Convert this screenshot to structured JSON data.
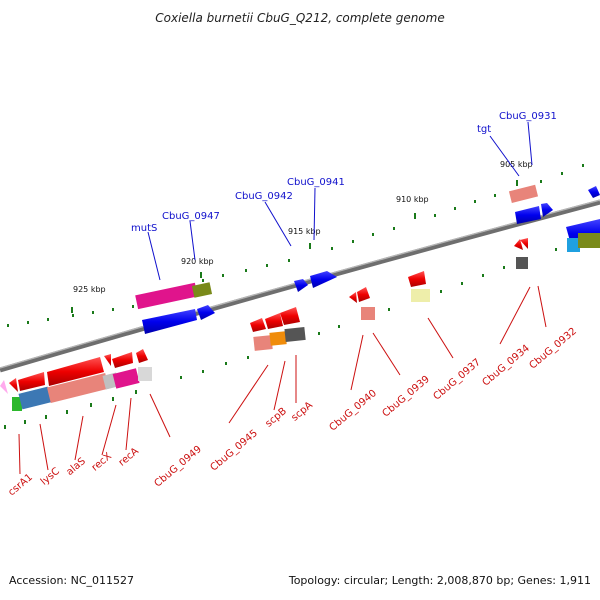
{
  "title": "Coxiella burnetii CbuG_Q212, complete genome",
  "footer": {
    "accession": "Accession: NC_011527",
    "topology": "Topology: circular; Length: 2,008,870 bp; Genes: 1,911"
  },
  "kbp_markers": [
    "905 kbp",
    "910 kbp",
    "915 kbp",
    "920 kbp",
    "925 kbp"
  ],
  "labels_top": [
    "CbuG_0931",
    "tgt",
    "CbuG_0941",
    "CbuG_0942",
    "CbuG_0947",
    "mutS"
  ],
  "labels_bottom": [
    "csrA1",
    "lysC",
    "alaS",
    "recX",
    "recA",
    "CbuG_0949",
    "CbuG_0945",
    "scpB",
    "scpA",
    "CbuG_0940",
    "CbuG_0939",
    "CbuG_0937",
    "CbuG_0934",
    "CbuG_0932"
  ],
  "colors": {
    "backbone": "#808080",
    "gene_forward": "#0000ee",
    "gene_reverse": "#ee0000",
    "label_top": "#1010cc",
    "label_bottom": "#cc1010",
    "tick": "#1a7a1a"
  }
}
